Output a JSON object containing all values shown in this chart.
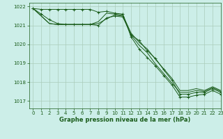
{
  "title": "Graphe pression niveau de la mer (hPa)",
  "bg_color": "#cceee8",
  "grid_color": "#aaccbb",
  "line_color": "#1a5c1a",
  "xlim": [
    -0.5,
    23
  ],
  "ylim": [
    1016.6,
    1022.2
  ],
  "yticks": [
    1017,
    1018,
    1019,
    1020,
    1021,
    1022
  ],
  "xticks": [
    0,
    1,
    2,
    3,
    4,
    5,
    6,
    7,
    8,
    9,
    10,
    11,
    12,
    13,
    14,
    15,
    16,
    17,
    18,
    19,
    20,
    21,
    22,
    23
  ],
  "series": [
    {
      "x": [
        0,
        1,
        2,
        3,
        4,
        5,
        6,
        7,
        8,
        9,
        10,
        11,
        12,
        13,
        14,
        15,
        16,
        17,
        18,
        19,
        20,
        21,
        22,
        23
      ],
      "y": [
        1021.9,
        1021.85,
        1021.85,
        1021.85,
        1021.85,
        1021.85,
        1021.85,
        1021.85,
        1021.7,
        1021.75,
        1021.65,
        1021.6,
        1020.4,
        1019.75,
        1019.3,
        1018.85,
        1018.35,
        1017.85,
        1017.2,
        1017.2,
        1017.3,
        1017.35,
        1017.55,
        1017.35
      ],
      "marker": true
    },
    {
      "x": [
        0,
        1,
        2,
        3,
        4,
        5,
        6,
        7,
        8,
        9,
        10,
        11,
        12,
        13,
        14,
        15,
        16,
        17,
        18,
        19,
        20,
        21,
        22,
        23
      ],
      "y": [
        1021.9,
        1021.6,
        1021.3,
        1021.1,
        1021.05,
        1021.05,
        1021.05,
        1021.05,
        1021.0,
        1021.4,
        1021.5,
        1021.45,
        1020.5,
        1020.2,
        1019.65,
        1019.25,
        1018.65,
        1018.1,
        1017.35,
        1017.35,
        1017.45,
        1017.45,
        1017.65,
        1017.45
      ],
      "marker": true
    },
    {
      "x": [
        0,
        2,
        3,
        4,
        5,
        6,
        7,
        8,
        9,
        10,
        11,
        12,
        13,
        14,
        15,
        16,
        17,
        18,
        19,
        20,
        21,
        22,
        23
      ],
      "y": [
        1021.9,
        1021.1,
        1021.05,
        1021.05,
        1021.05,
        1021.05,
        1021.05,
        1021.2,
        1021.65,
        1021.6,
        1021.55,
        1020.6,
        1020.1,
        1019.75,
        1019.2,
        1018.7,
        1018.2,
        1017.55,
        1017.55,
        1017.65,
        1017.55,
        1017.75,
        1017.55
      ],
      "marker": false
    },
    {
      "x": [
        0,
        2,
        3,
        4,
        5,
        6,
        7,
        8,
        9,
        10,
        11,
        12,
        13,
        14,
        15,
        16,
        17,
        18,
        19,
        20,
        21,
        22,
        23
      ],
      "y": [
        1021.9,
        1021.1,
        1021.05,
        1021.05,
        1021.05,
        1021.05,
        1021.05,
        1021.1,
        1021.35,
        1021.55,
        1021.5,
        1020.5,
        1019.95,
        1019.55,
        1018.95,
        1018.45,
        1017.95,
        1017.45,
        1017.45,
        1017.55,
        1017.5,
        1017.7,
        1017.5
      ],
      "marker": false
    }
  ]
}
